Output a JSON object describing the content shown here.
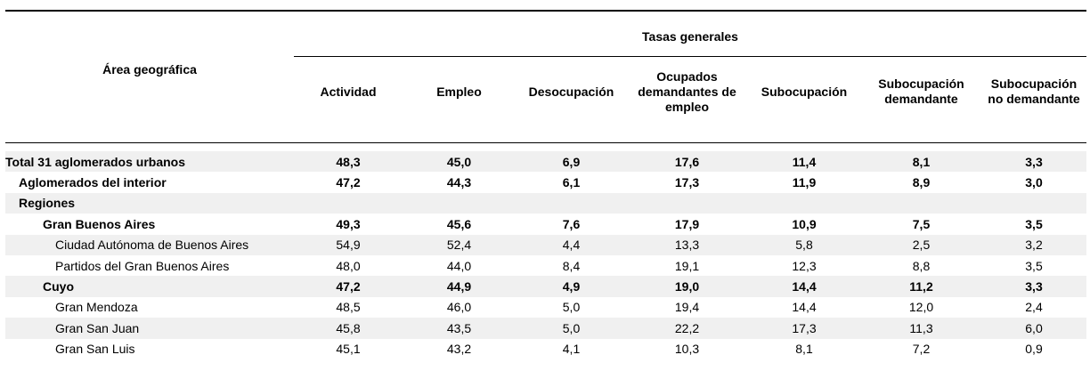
{
  "header": {
    "group_title": "Tasas generales",
    "area_title": "Área geográfica",
    "columns": [
      [
        "Actividad"
      ],
      [
        "Empleo"
      ],
      [
        "Desocupación"
      ],
      [
        "Ocupados",
        "demandantes de",
        "empleo"
      ],
      [
        "Subocupación"
      ],
      [
        "Subocupación",
        "demandante"
      ],
      [
        "Subocupación",
        "no demandante"
      ]
    ]
  },
  "rows": [
    {
      "name": "Total 31 aglomerados urbanos",
      "level": 0,
      "bold": true,
      "values": [
        "48,3",
        "45,0",
        "6,9",
        "17,6",
        "11,4",
        "8,1",
        "3,3"
      ]
    },
    {
      "name": "Aglomerados del interior",
      "level": 1,
      "bold": true,
      "values": [
        "47,2",
        "44,3",
        "6,1",
        "17,3",
        "11,9",
        "8,9",
        "3,0"
      ]
    },
    {
      "name": "Regiones",
      "level": 1,
      "bold": true,
      "values": [
        "",
        "",
        "",
        "",
        "",
        "",
        ""
      ]
    },
    {
      "name": "Gran Buenos Aires",
      "level": 2,
      "bold": true,
      "values": [
        "49,3",
        "45,6",
        "7,6",
        "17,9",
        "10,9",
        "7,5",
        "3,5"
      ]
    },
    {
      "name": "Ciudad Autónoma de Buenos Aires",
      "level": 3,
      "bold": false,
      "values": [
        "54,9",
        "52,4",
        "4,4",
        "13,3",
        "5,8",
        "2,5",
        "3,2"
      ]
    },
    {
      "name": "Partidos del Gran Buenos Aires",
      "level": 3,
      "bold": false,
      "values": [
        "48,0",
        "44,0",
        "8,4",
        "19,1",
        "12,3",
        "8,8",
        "3,5"
      ]
    },
    {
      "name": "Cuyo",
      "level": 2,
      "bold": true,
      "values": [
        "47,2",
        "44,9",
        "4,9",
        "19,0",
        "14,4",
        "11,2",
        "3,3"
      ]
    },
    {
      "name": "Gran Mendoza",
      "level": 3,
      "bold": false,
      "values": [
        "48,5",
        "46,0",
        "5,0",
        "19,4",
        "14,4",
        "12,0",
        "2,4"
      ]
    },
    {
      "name": "Gran San Juan",
      "level": 3,
      "bold": false,
      "values": [
        "45,8",
        "43,5",
        "5,0",
        "22,2",
        "17,3",
        "11,3",
        "6,0"
      ]
    },
    {
      "name": "Gran San Luis",
      "level": 3,
      "bold": false,
      "values": [
        "45,1",
        "43,2",
        "4,1",
        "10,3",
        "8,1",
        "7,2",
        "0,9"
      ]
    }
  ]
}
